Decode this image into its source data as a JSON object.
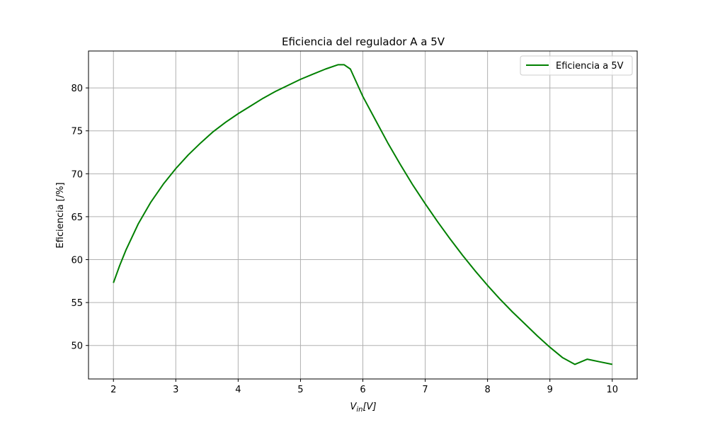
{
  "chart_data": {
    "type": "line",
    "title": "Eficiencia del regulador A a 5V",
    "xlabel_main": "V",
    "xlabel_sub": "in",
    "xlabel_rest": "[V]",
    "ylabel": "Eficiencia [/%]",
    "xlim": [
      1.6,
      10.4
    ],
    "ylim": [
      46.1,
      84.3
    ],
    "xticks": [
      2,
      3,
      4,
      5,
      6,
      7,
      8,
      9,
      10
    ],
    "yticks": [
      50,
      55,
      60,
      65,
      70,
      75,
      80
    ],
    "grid": true,
    "legend_position": "top-right",
    "colors": {
      "series": "#008000",
      "grid": "#b0b0b0",
      "axes": "#000000"
    },
    "series": [
      {
        "name": "Eficiencia a 5V",
        "x": [
          2.0,
          2.1,
          2.2,
          2.4,
          2.6,
          2.8,
          3.0,
          3.2,
          3.4,
          3.6,
          3.8,
          4.0,
          4.2,
          4.4,
          4.6,
          4.8,
          5.0,
          5.2,
          5.4,
          5.6,
          5.7,
          5.8,
          6.0,
          6.2,
          6.4,
          6.6,
          6.8,
          7.0,
          7.2,
          7.4,
          7.6,
          7.8,
          8.0,
          8.2,
          8.4,
          8.6,
          8.8,
          9.0,
          9.2,
          9.4,
          9.6,
          9.8,
          10.0
        ],
        "values": [
          57.3,
          59.3,
          61.1,
          64.2,
          66.7,
          68.8,
          70.6,
          72.2,
          73.6,
          74.9,
          76.0,
          77.0,
          77.9,
          78.8,
          79.6,
          80.3,
          81.0,
          81.6,
          82.2,
          82.7,
          82.7,
          82.2,
          79.0,
          76.3,
          73.6,
          71.1,
          68.7,
          66.5,
          64.4,
          62.4,
          60.5,
          58.7,
          57.0,
          55.4,
          53.9,
          52.5,
          51.1,
          49.8,
          48.6,
          47.8,
          48.4,
          48.1,
          47.8
        ]
      }
    ]
  }
}
